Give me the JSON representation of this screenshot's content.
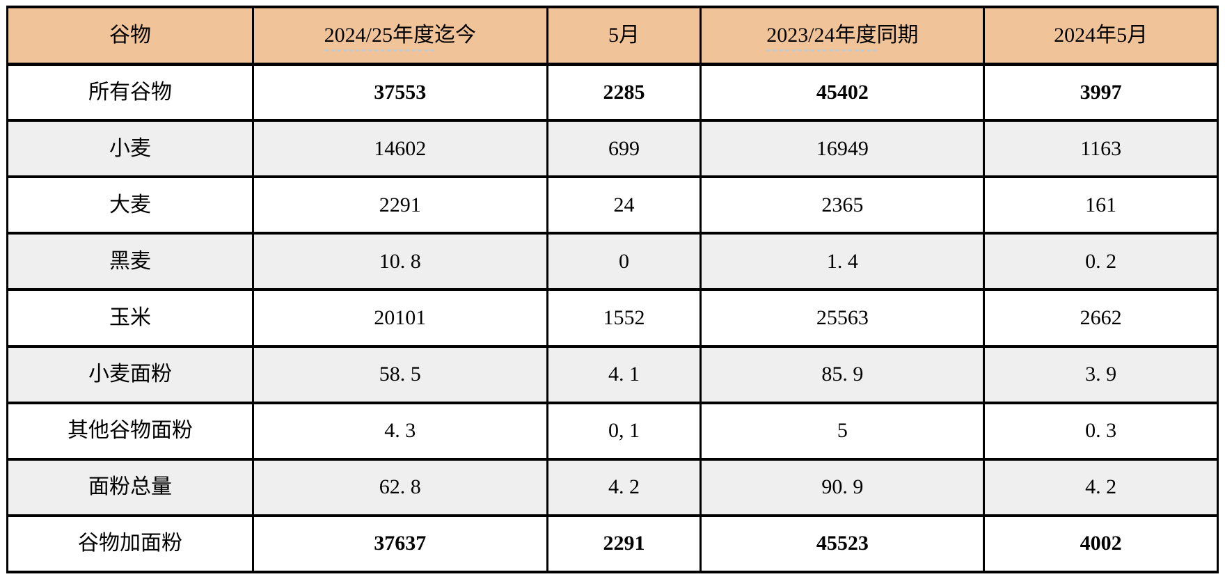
{
  "colors": {
    "header_bg": "#f1c398",
    "alt_row_bg": "#efefef",
    "row_bg": "#ffffff",
    "border": "#000000",
    "text": "#000000",
    "dash_underline": "#c9c9c9"
  },
  "table": {
    "headers": [
      {
        "label": "谷物"
      },
      {
        "under": "2024/25年度",
        "rest": "迄今"
      },
      {
        "label": "5月"
      },
      {
        "under": "2023/24年度",
        "rest": "同期"
      },
      {
        "label": "2024年5月"
      }
    ],
    "rows": [
      {
        "label": "所有谷物",
        "values": [
          "37553",
          "2285",
          "45402",
          "3997"
        ]
      },
      {
        "label": "小麦",
        "values": [
          "14602",
          "699",
          "16949",
          "1163"
        ]
      },
      {
        "label": "大麦",
        "values": [
          "2291",
          "24",
          "2365",
          "161"
        ]
      },
      {
        "label": "黑麦",
        "values": [
          "10. 8",
          "0",
          "1. 4",
          "0. 2"
        ]
      },
      {
        "label": "玉米",
        "values": [
          "20101",
          "1552",
          "25563",
          "2662"
        ]
      },
      {
        "label": "小麦面粉",
        "values": [
          "58. 5",
          "4. 1",
          "85. 9",
          "3. 9"
        ]
      },
      {
        "label": "其他谷物面粉",
        "values": [
          "4. 3",
          "0, 1",
          "5",
          "0. 3"
        ]
      },
      {
        "label": "面粉总量",
        "values": [
          "62. 8",
          "4. 2",
          "90. 9",
          "4. 2"
        ]
      },
      {
        "label": "谷物加面粉",
        "values": [
          "37637",
          "2291",
          "45523",
          "4002"
        ]
      }
    ]
  },
  "chart_data": {
    "type": "table",
    "title": "",
    "columns": [
      "谷物",
      "2024/25年度迄今",
      "5月",
      "2023/24年度同期",
      "2024年5月"
    ],
    "rows": [
      [
        "所有谷物",
        37553,
        2285,
        45402,
        3997
      ],
      [
        "小麦",
        14602,
        699,
        16949,
        1163
      ],
      [
        "大麦",
        2291,
        24,
        2365,
        161
      ],
      [
        "黑麦",
        10.8,
        0,
        1.4,
        0.2
      ],
      [
        "玉米",
        20101,
        1552,
        25563,
        2662
      ],
      [
        "小麦面粉",
        58.5,
        4.1,
        85.9,
        3.9
      ],
      [
        "其他谷物面粉",
        4.3,
        "0,1",
        5,
        0.3
      ],
      [
        "面粉总量",
        62.8,
        4.2,
        90.9,
        4.2
      ],
      [
        "谷物加面粉",
        37637,
        2291,
        45523,
        4002
      ]
    ],
    "bold_rows": [
      "所有谷物",
      "谷物加面粉"
    ],
    "header_style": "orange-fill",
    "row_striping": "alternating gray starting at 小麦"
  }
}
